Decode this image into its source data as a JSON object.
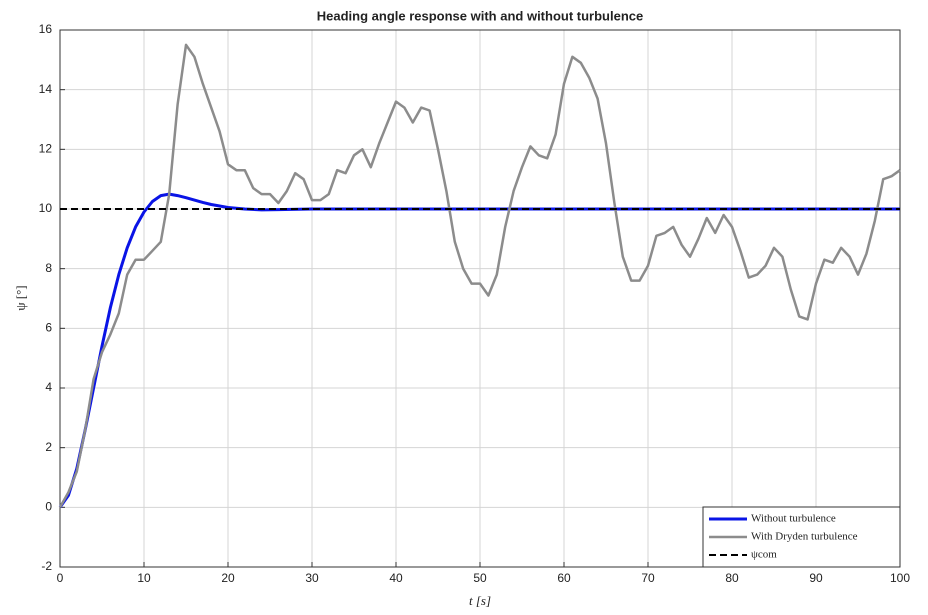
{
  "chart_data": {
    "type": "line",
    "title": "Heading angle response with and without turbulence",
    "xlabel": "t [s]",
    "ylabel": "ψ [°]",
    "xlim": [
      0,
      100
    ],
    "ylim": [
      -2,
      16
    ],
    "xticks": [
      0,
      10,
      20,
      30,
      40,
      50,
      60,
      70,
      80,
      90,
      100
    ],
    "yticks": [
      -2,
      0,
      2,
      4,
      6,
      8,
      10,
      12,
      14,
      16
    ],
    "grid": true,
    "legend": "lower right",
    "series": [
      {
        "name": "Without turbulence",
        "color": "#0a14e6",
        "dash": false,
        "width": 3,
        "x": [
          0,
          1,
          2,
          3,
          4,
          5,
          6,
          7,
          8,
          9,
          10,
          11,
          12,
          13,
          14,
          15,
          16,
          17,
          18,
          19,
          20,
          22,
          24,
          26,
          30,
          100
        ],
        "values": [
          0,
          0.4,
          1.3,
          2.6,
          4.0,
          5.4,
          6.7,
          7.8,
          8.7,
          9.4,
          9.9,
          10.25,
          10.45,
          10.5,
          10.45,
          10.38,
          10.3,
          10.22,
          10.15,
          10.1,
          10.05,
          10.0,
          9.97,
          9.98,
          10,
          10
        ]
      },
      {
        "name": "With Dryden turbulence",
        "color": "#8c8c8c",
        "dash": false,
        "width": 2.5,
        "x": [
          0,
          1,
          2,
          3,
          4,
          5,
          6,
          7,
          8,
          9,
          10,
          11,
          12,
          13,
          14,
          15,
          16,
          17,
          18,
          19,
          20,
          21,
          22,
          23,
          24,
          25,
          26,
          27,
          28,
          29,
          30,
          31,
          32,
          33,
          34,
          35,
          36,
          37,
          38,
          39,
          40,
          41,
          42,
          43,
          44,
          45,
          46,
          47,
          48,
          49,
          50,
          51,
          52,
          53,
          54,
          55,
          56,
          57,
          58,
          59,
          60,
          61,
          62,
          63,
          64,
          65,
          66,
          67,
          68,
          69,
          70,
          71,
          72,
          73,
          74,
          75,
          76,
          77,
          78,
          79,
          80,
          81,
          82,
          83,
          84,
          85,
          86,
          87,
          88,
          89,
          90,
          91,
          92,
          93,
          94,
          95,
          96,
          97,
          98,
          99,
          100
        ],
        "values": [
          0,
          0.5,
          1.2,
          2.6,
          4.3,
          5.2,
          5.8,
          6.5,
          7.8,
          8.3,
          8.3,
          8.6,
          8.9,
          10.5,
          13.5,
          15.5,
          15.1,
          14.2,
          13.4,
          12.6,
          11.5,
          11.3,
          11.3,
          10.7,
          10.5,
          10.5,
          10.2,
          10.6,
          11.2,
          11.0,
          10.3,
          10.3,
          10.5,
          11.3,
          11.2,
          11.8,
          12.0,
          11.4,
          12.2,
          12.9,
          13.6,
          13.4,
          12.9,
          13.4,
          13.3,
          12.0,
          10.6,
          8.9,
          8.0,
          7.5,
          7.5,
          7.1,
          7.8,
          9.4,
          10.6,
          11.4,
          12.1,
          11.8,
          11.7,
          12.5,
          14.2,
          15.1,
          14.9,
          14.4,
          13.7,
          12.2,
          10.2,
          8.4,
          7.6,
          7.6,
          8.1,
          9.1,
          9.2,
          9.4,
          8.8,
          8.4,
          9.0,
          9.7,
          9.2,
          9.8,
          9.4,
          8.6,
          7.7,
          7.8,
          8.1,
          8.7,
          8.4,
          7.3,
          6.4,
          6.3,
          7.5,
          8.3,
          8.2,
          8.7,
          8.4,
          7.8,
          8.5,
          9.6,
          11.0,
          11.1,
          11.3
        ]
      },
      {
        "name": "ψcom",
        "color": "#000000",
        "dash": true,
        "width": 2,
        "x": [
          0,
          100
        ],
        "values": [
          10,
          10
        ]
      }
    ]
  }
}
